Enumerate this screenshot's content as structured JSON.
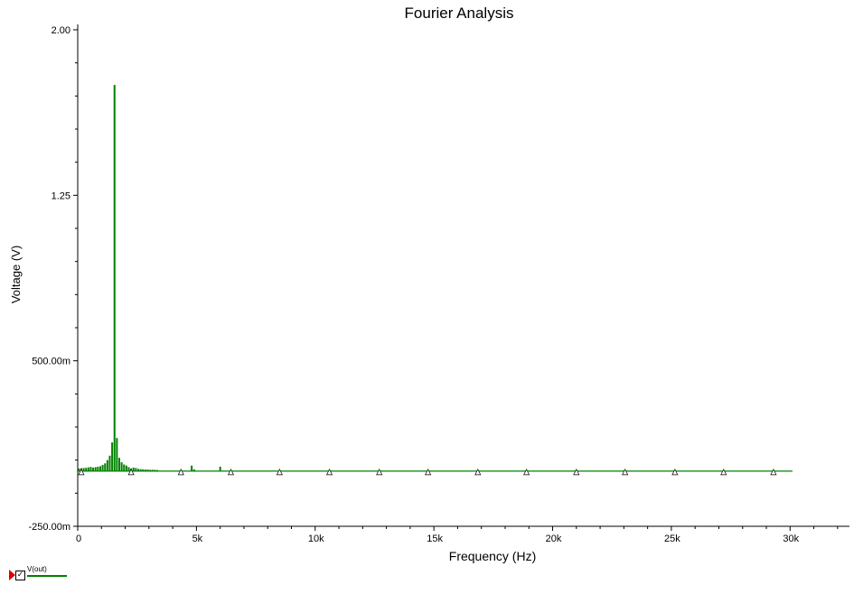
{
  "chart_data": {
    "type": "bar",
    "title": "Fourier Analysis",
    "xlabel": "Frequency (Hz)",
    "ylabel": "Voltage (V)",
    "xlim": [
      0,
      32500
    ],
    "ylim": [
      -0.25,
      2.0
    ],
    "x_ticks": [
      {
        "value": 0,
        "label": "0"
      },
      {
        "value": 5000,
        "label": "5k"
      },
      {
        "value": 10000,
        "label": "10k"
      },
      {
        "value": 15000,
        "label": "15k"
      },
      {
        "value": 20000,
        "label": "20k"
      },
      {
        "value": 25000,
        "label": "25k"
      },
      {
        "value": 30000,
        "label": "30k"
      }
    ],
    "y_ticks": [
      {
        "value": 2.0,
        "label": "2.00"
      },
      {
        "value": 1.25,
        "label": "1.25"
      },
      {
        "value": 0.5,
        "label": "500.00m"
      },
      {
        "value": -0.25,
        "label": "-250.00m"
      }
    ],
    "grid": false,
    "series": [
      {
        "name": "V(out)",
        "color": "#008000",
        "baseline_value": 0.0,
        "baseline_end": 30100,
        "bars": [
          [
            50,
            0.012
          ],
          [
            150,
            0.013
          ],
          [
            250,
            0.014
          ],
          [
            350,
            0.015
          ],
          [
            450,
            0.017
          ],
          [
            550,
            0.019
          ],
          [
            650,
            0.016
          ],
          [
            750,
            0.018
          ],
          [
            850,
            0.02
          ],
          [
            950,
            0.022
          ],
          [
            1050,
            0.028
          ],
          [
            1150,
            0.035
          ],
          [
            1250,
            0.05
          ],
          [
            1350,
            0.07
          ],
          [
            1450,
            0.13
          ],
          [
            1550,
            1.75
          ],
          [
            1650,
            0.15
          ],
          [
            1750,
            0.06
          ],
          [
            1850,
            0.04
          ],
          [
            1950,
            0.03
          ],
          [
            2050,
            0.025
          ],
          [
            2150,
            0.018
          ],
          [
            2250,
            0.012
          ],
          [
            2350,
            0.016
          ],
          [
            2450,
            0.014
          ],
          [
            2550,
            0.01
          ],
          [
            2650,
            0.009
          ],
          [
            2750,
            0.008
          ],
          [
            2850,
            0.007
          ],
          [
            2950,
            0.007
          ],
          [
            3050,
            0.006
          ],
          [
            3150,
            0.006
          ],
          [
            3250,
            0.006
          ],
          [
            3350,
            0.005
          ],
          [
            4800,
            0.025
          ],
          [
            4900,
            0.008
          ],
          [
            6000,
            0.02
          ],
          [
            8500,
            0.002
          ]
        ],
        "markers_x": [
          150,
          2250,
          4350,
          6450,
          8500,
          10600,
          12700,
          14750,
          16850,
          18900,
          21000,
          23050,
          25150,
          27200,
          29300
        ]
      }
    ]
  },
  "legend": {
    "label": "V(out)",
    "color": "#008000",
    "checked": true
  }
}
